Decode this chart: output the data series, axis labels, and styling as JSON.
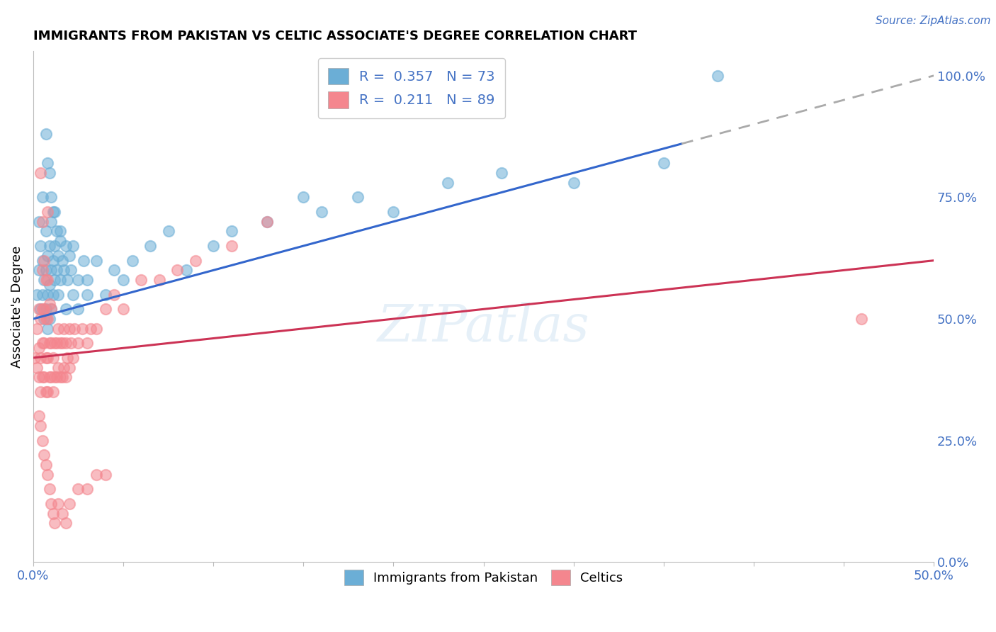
{
  "title": "IMMIGRANTS FROM PAKISTAN VS CELTIC ASSOCIATE'S DEGREE CORRELATION CHART",
  "source_text": "Source: ZipAtlas.com",
  "ylabel": "Associate's Degree",
  "xlim": [
    0.0,
    0.5
  ],
  "ylim": [
    0.0,
    1.05
  ],
  "series1_color": "#6baed6",
  "series1_label": "Immigrants from Pakistan",
  "series1_R": 0.357,
  "series1_N": 73,
  "series2_color": "#f4868e",
  "series2_label": "Celtics",
  "series2_R": 0.211,
  "series2_N": 89,
  "line1_color": "#3366cc",
  "line2_color": "#cc3355",
  "line1_x0": 0.0,
  "line1_y0": 0.5,
  "line1_x1": 0.5,
  "line1_y1": 1.0,
  "line1_solid_end": 0.36,
  "line2_x0": 0.0,
  "line2_y0": 0.42,
  "line2_x1": 0.5,
  "line2_y1": 0.62,
  "watermark": "ZIPatlas",
  "series1_x": [
    0.002,
    0.003,
    0.003,
    0.004,
    0.004,
    0.005,
    0.005,
    0.005,
    0.006,
    0.006,
    0.007,
    0.007,
    0.007,
    0.008,
    0.008,
    0.008,
    0.009,
    0.009,
    0.009,
    0.01,
    0.01,
    0.01,
    0.011,
    0.011,
    0.011,
    0.012,
    0.012,
    0.013,
    0.013,
    0.014,
    0.014,
    0.015,
    0.015,
    0.016,
    0.017,
    0.018,
    0.019,
    0.02,
    0.021,
    0.022,
    0.025,
    0.028,
    0.03,
    0.035,
    0.04,
    0.045,
    0.05,
    0.055,
    0.065,
    0.075,
    0.085,
    0.1,
    0.11,
    0.13,
    0.15,
    0.16,
    0.18,
    0.2,
    0.23,
    0.26,
    0.3,
    0.35,
    0.38,
    0.025,
    0.03,
    0.018,
    0.022,
    0.008,
    0.01,
    0.015,
    0.007,
    0.009,
    0.012
  ],
  "series1_y": [
    0.55,
    0.6,
    0.7,
    0.52,
    0.65,
    0.55,
    0.62,
    0.75,
    0.5,
    0.58,
    0.52,
    0.6,
    0.68,
    0.48,
    0.55,
    0.63,
    0.5,
    0.57,
    0.65,
    0.52,
    0.6,
    0.7,
    0.55,
    0.62,
    0.72,
    0.58,
    0.65,
    0.6,
    0.68,
    0.55,
    0.63,
    0.58,
    0.66,
    0.62,
    0.6,
    0.65,
    0.58,
    0.63,
    0.6,
    0.65,
    0.58,
    0.62,
    0.58,
    0.62,
    0.55,
    0.6,
    0.58,
    0.62,
    0.65,
    0.68,
    0.6,
    0.65,
    0.68,
    0.7,
    0.75,
    0.72,
    0.75,
    0.72,
    0.78,
    0.8,
    0.78,
    0.82,
    1.0,
    0.52,
    0.55,
    0.52,
    0.55,
    0.82,
    0.75,
    0.68,
    0.88,
    0.8,
    0.72
  ],
  "series2_x": [
    0.001,
    0.002,
    0.002,
    0.003,
    0.003,
    0.003,
    0.004,
    0.004,
    0.004,
    0.005,
    0.005,
    0.005,
    0.005,
    0.006,
    0.006,
    0.006,
    0.007,
    0.007,
    0.007,
    0.007,
    0.008,
    0.008,
    0.008,
    0.008,
    0.009,
    0.009,
    0.009,
    0.01,
    0.01,
    0.01,
    0.011,
    0.011,
    0.012,
    0.012,
    0.013,
    0.013,
    0.014,
    0.014,
    0.015,
    0.015,
    0.016,
    0.016,
    0.017,
    0.017,
    0.018,
    0.018,
    0.019,
    0.02,
    0.02,
    0.021,
    0.022,
    0.023,
    0.025,
    0.027,
    0.03,
    0.032,
    0.035,
    0.04,
    0.045,
    0.05,
    0.06,
    0.07,
    0.08,
    0.09,
    0.11,
    0.13,
    0.003,
    0.004,
    0.005,
    0.006,
    0.007,
    0.008,
    0.009,
    0.01,
    0.011,
    0.012,
    0.014,
    0.016,
    0.018,
    0.02,
    0.025,
    0.03,
    0.035,
    0.04,
    0.46,
    0.008,
    0.006,
    0.005,
    0.004
  ],
  "series2_y": [
    0.42,
    0.4,
    0.48,
    0.38,
    0.44,
    0.52,
    0.35,
    0.42,
    0.5,
    0.38,
    0.45,
    0.52,
    0.6,
    0.38,
    0.45,
    0.52,
    0.35,
    0.42,
    0.5,
    0.58,
    0.35,
    0.42,
    0.5,
    0.58,
    0.38,
    0.45,
    0.53,
    0.38,
    0.45,
    0.52,
    0.35,
    0.42,
    0.38,
    0.45,
    0.38,
    0.45,
    0.4,
    0.48,
    0.38,
    0.45,
    0.38,
    0.45,
    0.4,
    0.48,
    0.38,
    0.45,
    0.42,
    0.4,
    0.48,
    0.45,
    0.42,
    0.48,
    0.45,
    0.48,
    0.45,
    0.48,
    0.48,
    0.52,
    0.55,
    0.52,
    0.58,
    0.58,
    0.6,
    0.62,
    0.65,
    0.7,
    0.3,
    0.28,
    0.25,
    0.22,
    0.2,
    0.18,
    0.15,
    0.12,
    0.1,
    0.08,
    0.12,
    0.1,
    0.08,
    0.12,
    0.15,
    0.15,
    0.18,
    0.18,
    0.5,
    0.72,
    0.62,
    0.7,
    0.8
  ]
}
